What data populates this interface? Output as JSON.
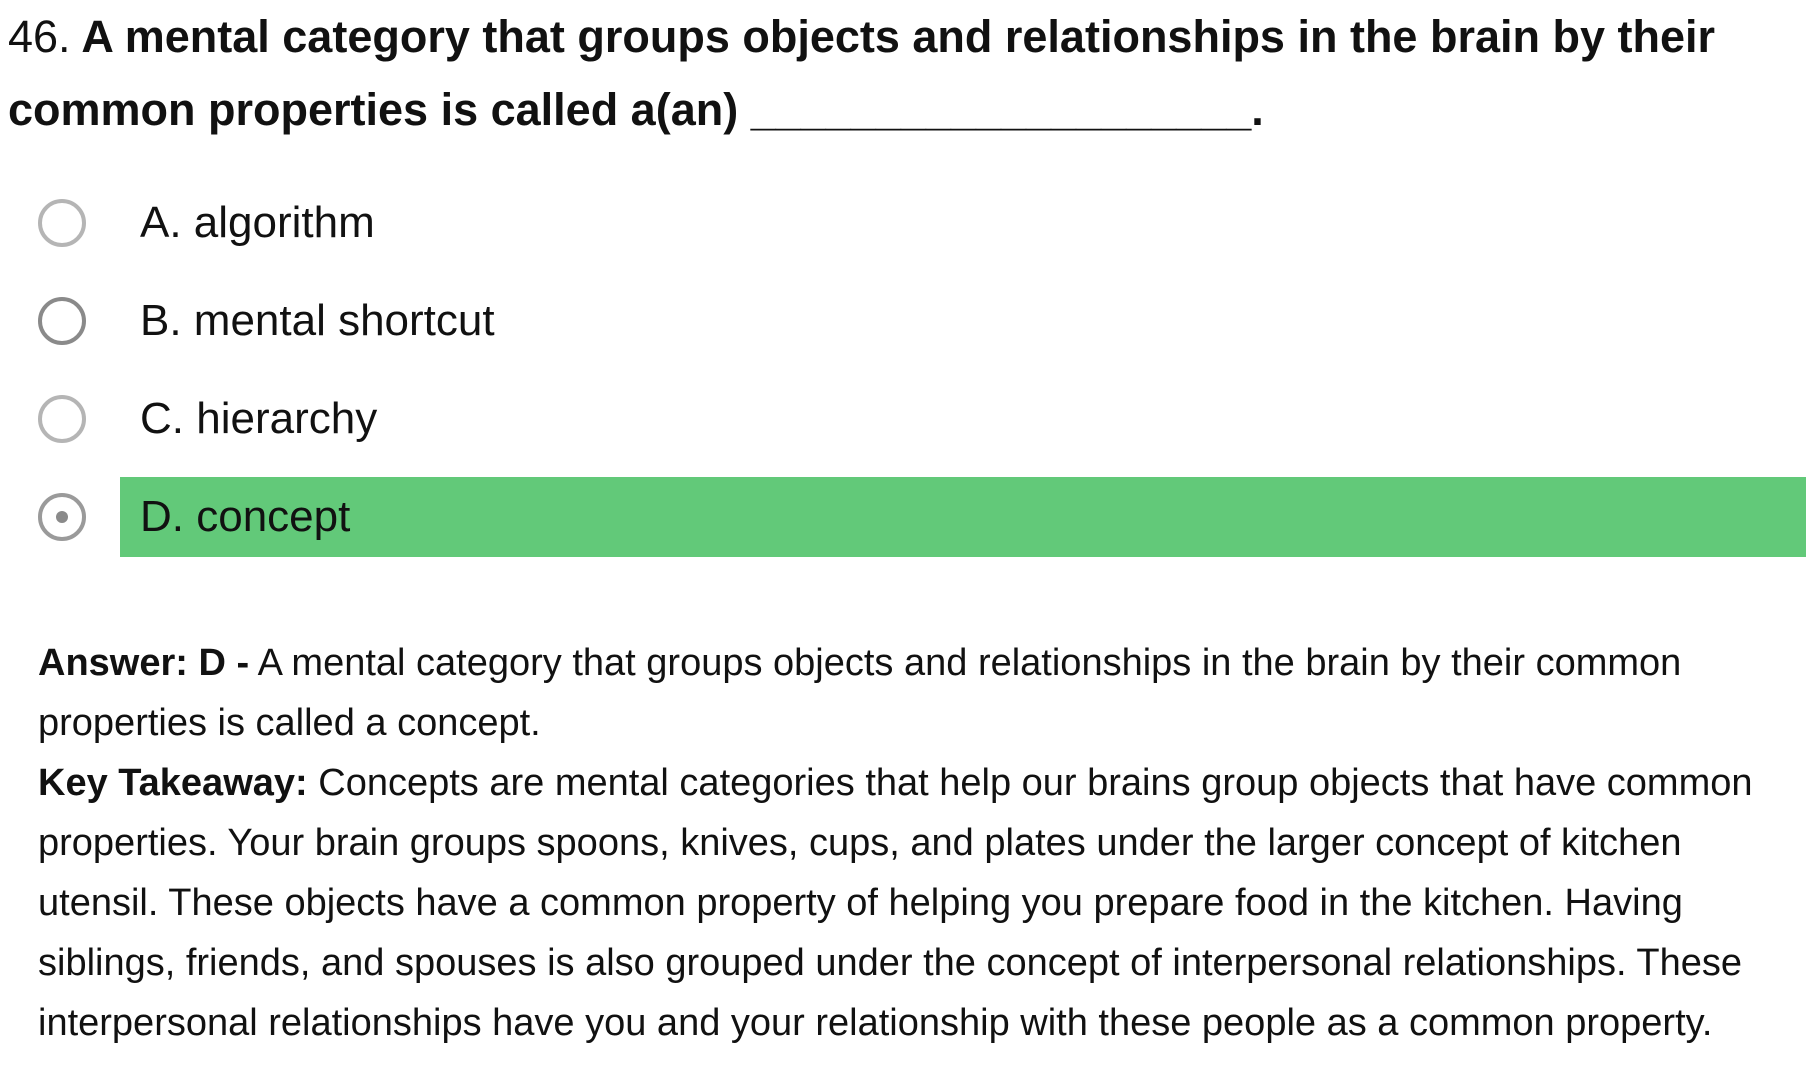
{
  "question": {
    "number": "46.",
    "text": "A mental category that groups objects and relationships in the brain by their common properties is called a(an) ____________________."
  },
  "options": [
    {
      "label": "A. algorithm",
      "selected": false,
      "correct": false
    },
    {
      "label": "B. mental shortcut",
      "selected": false,
      "correct": false
    },
    {
      "label": "C. hierarchy",
      "selected": false,
      "correct": false
    },
    {
      "label": "D. concept",
      "selected": true,
      "correct": true
    }
  ],
  "explanation": {
    "answer_label": "Answer: D -",
    "answer_text": "A mental category that groups objects and relationships in the brain by their common properties is called a concept.",
    "takeaway_label": "Key Takeaway:",
    "takeaway_text": "Concepts are mental categories that help our brains group objects that have common properties. Your brain groups spoons, knives, cups, and plates under the larger concept of kitchen utensil. These objects have a common property of helping you prepare food in the kitchen. Having siblings, friends, and spouses is also grouped under the concept of interpersonal relationships. These interpersonal relationships have you and your relationship with these people as a common property."
  },
  "colors": {
    "correct_highlight": "#62c979",
    "radio_border": "#b5b5b5",
    "text": "#111111"
  }
}
